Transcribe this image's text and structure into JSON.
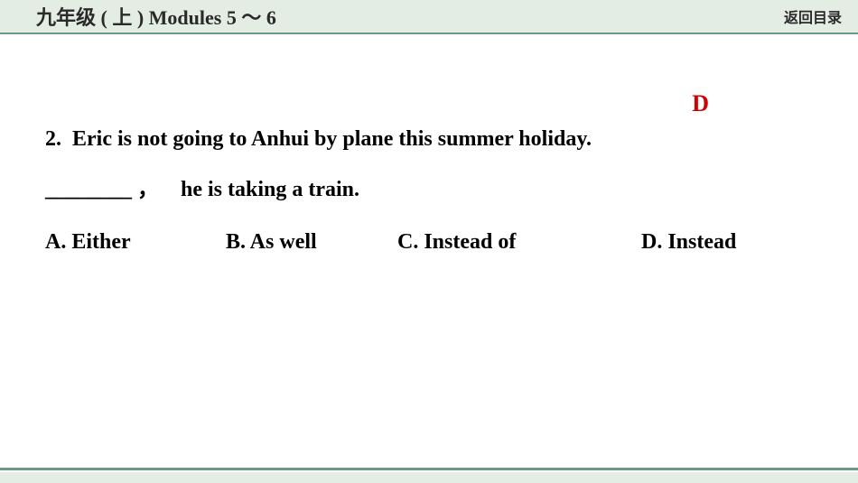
{
  "header": {
    "title": "九年级 ( 上 ) Modules 5 ～ 6",
    "return_label": "返回目录"
  },
  "question": {
    "number": "2.",
    "sentence_part1": "Eric is not going to Anhui by plane this summer holiday.",
    "blank": "________",
    "separator": "，",
    "sentence_part2": "he is taking a train.",
    "options": {
      "a": "A. Either",
      "b": "B. As well",
      "c": "C. Instead of",
      "d": "D. Instead"
    },
    "answer": "D"
  },
  "colors": {
    "header_bg": "#e4ede4",
    "accent_line": "#6b9a8a",
    "text": "#000000",
    "answer": "#d40000"
  }
}
